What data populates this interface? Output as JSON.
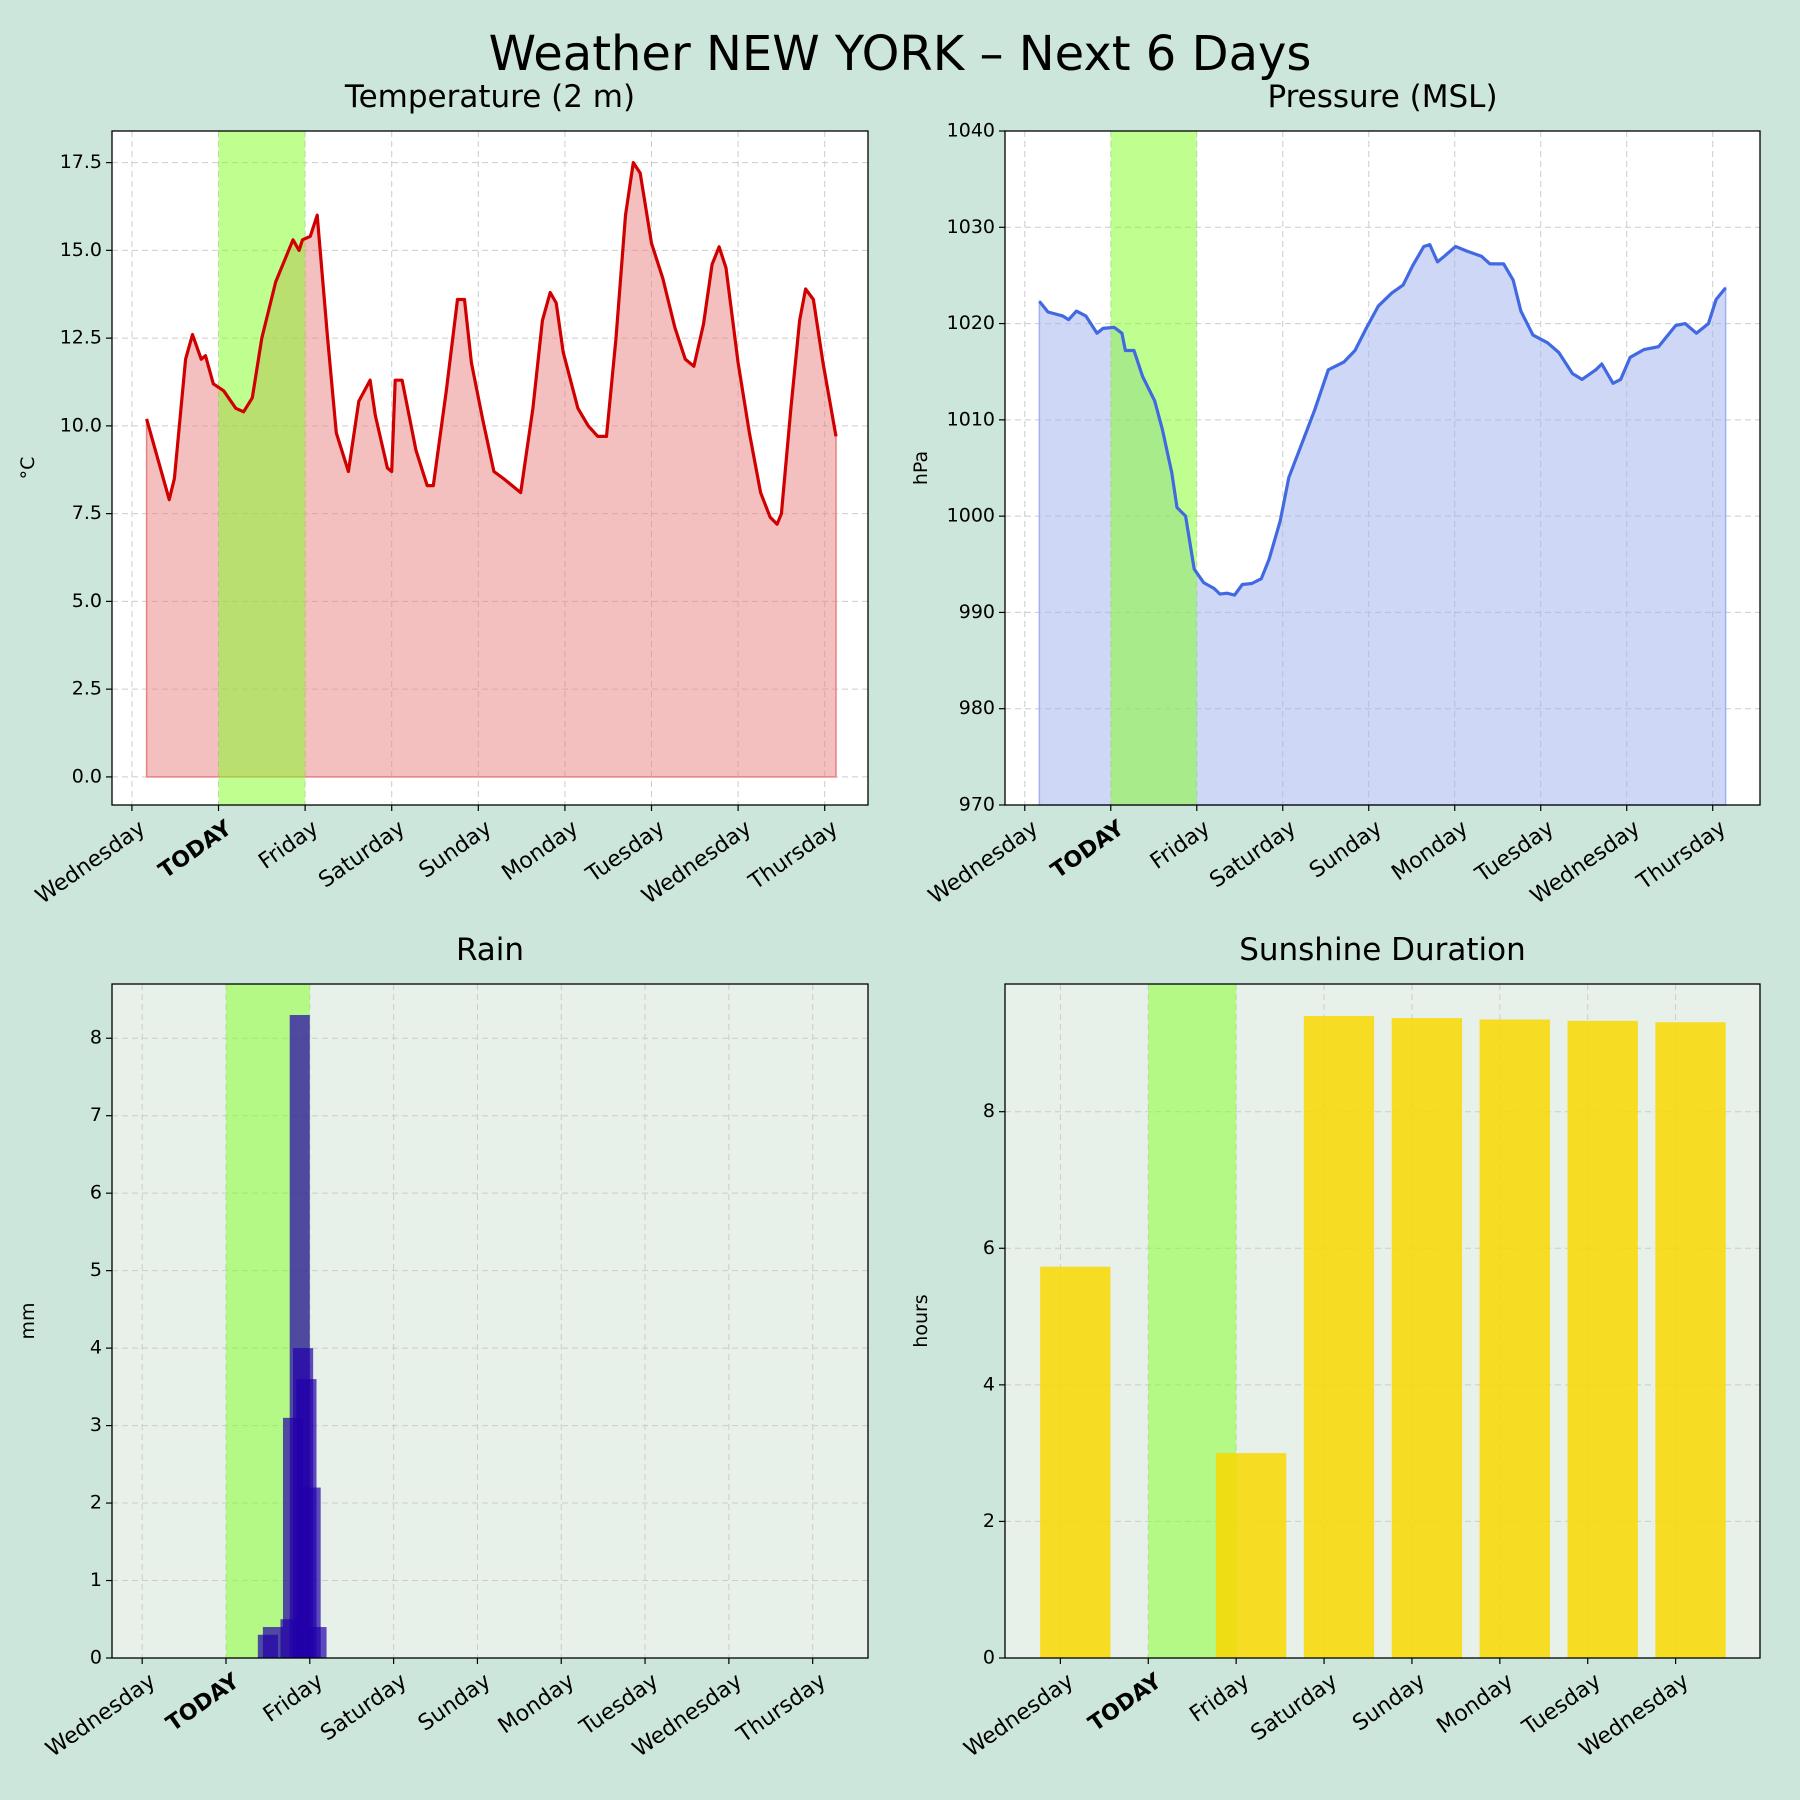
{
  "title": "Weather NEW YORK – Next 6 Days",
  "chart_data": [
    {
      "type": "line",
      "title": "Temperature (2 m)",
      "ylabel": "°C",
      "color": "#d00000",
      "fill_color": "#e88080",
      "background": "#ffffff",
      "highlight_tick": 1,
      "highlight_color": "#7fff20",
      "highlight_label_color": "#55bb00",
      "grid": true,
      "xlim": [
        -0.23,
        8.5
      ],
      "ylim": [
        -0.8,
        18.4
      ],
      "xticks": [
        {
          "value": 0,
          "label": "Wednesday"
        },
        {
          "value": 1,
          "label": "TODAY"
        },
        {
          "value": 2,
          "label": "Friday"
        },
        {
          "value": 3,
          "label": "Saturday"
        },
        {
          "value": 4,
          "label": "Sunday"
        },
        {
          "value": 5,
          "label": "Monday"
        },
        {
          "value": 6,
          "label": "Tuesday"
        },
        {
          "value": 7,
          "label": "Wednesday"
        },
        {
          "value": 8,
          "label": "Thursday"
        }
      ],
      "yticks": [
        {
          "value": 0,
          "label": "0.0"
        },
        {
          "value": 2.5,
          "label": "2.5"
        },
        {
          "value": 5,
          "label": "5.0"
        },
        {
          "value": 7.5,
          "label": "7.5"
        },
        {
          "value": 10,
          "label": "10.0"
        },
        {
          "value": 12.5,
          "label": "12.5"
        },
        {
          "value": 15,
          "label": "15.0"
        },
        {
          "value": 17.5,
          "label": "17.5"
        }
      ],
      "x": [
        0.17,
        0.43,
        0.49,
        0.62,
        0.7,
        0.8,
        0.85,
        0.94,
        1.06,
        1.2,
        1.29,
        1.39,
        1.5,
        1.66,
        1.86,
        1.93,
        1.97,
        2.06,
        2.14,
        2.26,
        2.36,
        2.5,
        2.62,
        2.75,
        2.81,
        2.95,
        3.0,
        3.04,
        3.12,
        3.28,
        3.41,
        3.48,
        3.63,
        3.76,
        3.84,
        3.92,
        4.05,
        4.18,
        4.29,
        4.49,
        4.63,
        4.74,
        4.83,
        4.9,
        4.98,
        5.15,
        5.27,
        5.38,
        5.48,
        5.59,
        5.7,
        5.79,
        5.87,
        6.0,
        6.13,
        6.27,
        6.39,
        6.49,
        6.6,
        6.7,
        6.78,
        6.86,
        7.0,
        7.13,
        7.26,
        7.37,
        7.45,
        7.5,
        7.61,
        7.71,
        7.78,
        7.87,
        7.98,
        8.13
      ],
      "values": [
        10.2,
        7.9,
        8.5,
        11.9,
        12.6,
        11.9,
        12.0,
        11.2,
        11.0,
        10.5,
        10.4,
        10.8,
        12.5,
        14.1,
        15.3,
        15.0,
        15.3,
        15.4,
        16.0,
        12.5,
        9.8,
        8.7,
        10.7,
        11.3,
        10.3,
        8.8,
        8.7,
        11.3,
        11.3,
        9.3,
        8.3,
        8.3,
        11.0,
        13.6,
        13.6,
        11.8,
        10.2,
        8.7,
        8.5,
        8.1,
        10.5,
        13.0,
        13.8,
        13.5,
        12.1,
        10.5,
        10.0,
        9.7,
        9.7,
        12.5,
        16.0,
        17.5,
        17.2,
        15.2,
        14.2,
        12.8,
        11.9,
        11.7,
        12.9,
        14.6,
        15.1,
        14.5,
        11.8,
        9.8,
        8.1,
        7.4,
        7.2,
        7.5,
        10.5,
        13.0,
        13.9,
        13.6,
        11.8,
        9.7
      ]
    },
    {
      "type": "line",
      "title": "Pressure (MSL)",
      "ylabel": "hPa",
      "color": "#4169e1",
      "fill_color": "#a0b0f0",
      "background": "#ffffff",
      "highlight_tick": 1,
      "highlight_color": "#7fff20",
      "highlight_label_color": "#55bb00",
      "grid": true,
      "xlim": [
        -0.23,
        8.55
      ],
      "ylim": [
        970,
        1040
      ],
      "xticks": [
        {
          "value": 0,
          "label": "Wednesday"
        },
        {
          "value": 1,
          "label": "TODAY"
        },
        {
          "value": 2,
          "label": "Friday"
        },
        {
          "value": 3,
          "label": "Saturday"
        },
        {
          "value": 4,
          "label": "Sunday"
        },
        {
          "value": 5,
          "label": "Monday"
        },
        {
          "value": 6,
          "label": "Tuesday"
        },
        {
          "value": 7,
          "label": "Wednesday"
        },
        {
          "value": 8,
          "label": "Thursday"
        }
      ],
      "yticks": [
        970,
        980,
        990,
        1000,
        1010,
        1020,
        1030,
        1040
      ],
      "x": [
        0.17,
        0.27,
        0.44,
        0.51,
        0.6,
        0.71,
        0.84,
        0.91,
        1.04,
        1.13,
        1.17,
        1.27,
        1.37,
        1.51,
        1.6,
        1.71,
        1.77,
        1.87,
        1.97,
        2.08,
        2.2,
        2.27,
        2.35,
        2.44,
        2.53,
        2.64,
        2.75,
        2.84,
        2.97,
        3.07,
        3.2,
        3.37,
        3.53,
        3.71,
        3.84,
        3.97,
        4.11,
        4.27,
        4.4,
        4.51,
        4.64,
        4.71,
        4.8,
        4.88,
        5.01,
        5.15,
        5.31,
        5.41,
        5.57,
        5.68,
        5.77,
        5.91,
        6.08,
        6.21,
        6.37,
        6.48,
        6.64,
        6.71,
        6.84,
        6.93,
        7.04,
        7.2,
        7.37,
        7.57,
        7.68,
        7.81,
        7.95,
        8.04,
        8.15
      ],
      "values": [
        1022.3,
        1021.2,
        1020.8,
        1020.4,
        1021.3,
        1020.8,
        1019.0,
        1019.5,
        1019.6,
        1019.0,
        1017.2,
        1017.2,
        1014.5,
        1012,
        1009,
        1004.5,
        1000.9,
        1000,
        994.5,
        993.1,
        992.5,
        991.9,
        992.0,
        991.8,
        992.9,
        993.0,
        993.5,
        995.5,
        999.5,
        1004,
        1007,
        1011,
        1015.2,
        1016.0,
        1017.2,
        1019.5,
        1021.8,
        1023.2,
        1024.0,
        1026.0,
        1028.0,
        1028.2,
        1026.4,
        1027,
        1028.0,
        1027.5,
        1027.0,
        1026.2,
        1026.2,
        1024.5,
        1021.3,
        1018.8,
        1018.0,
        1017,
        1014.8,
        1014.2,
        1015.2,
        1015.8,
        1013.8,
        1014.2,
        1016.5,
        1017.3,
        1017.6,
        1019.8,
        1020,
        1019.0,
        1020,
        1022.5,
        1023.7
      ]
    },
    {
      "type": "bar",
      "title": "Rain",
      "ylabel": "mm",
      "color": "#2200aa",
      "background": "#e8f0ea",
      "bar_width": 0.24,
      "highlight_tick": 1,
      "highlight_color": "#7fff20",
      "highlight_label_color": "#55bb00",
      "grid": true,
      "xlim": [
        -0.36,
        8.66
      ],
      "ylim": [
        0,
        8.7
      ],
      "xticks": [
        {
          "value": 0,
          "label": "Wednesday"
        },
        {
          "value": 1,
          "label": "TODAY"
        },
        {
          "value": 2,
          "label": "Friday"
        },
        {
          "value": 3,
          "label": "Saturday"
        },
        {
          "value": 4,
          "label": "Sunday"
        },
        {
          "value": 5,
          "label": "Monday"
        },
        {
          "value": 6,
          "label": "Tuesday"
        },
        {
          "value": 7,
          "label": "Wednesday"
        },
        {
          "value": 8,
          "label": "Thursday"
        }
      ],
      "yticks": [
        0,
        1,
        2,
        3,
        4,
        5,
        6,
        7,
        8
      ],
      "x": [
        1.5,
        1.56,
        1.77,
        1.8,
        1.88,
        1.92,
        1.96,
        2.01,
        2.08
      ],
      "values": [
        0.3,
        0.4,
        0.5,
        3.1,
        8.3,
        4.0,
        3.6,
        2.2,
        0.4
      ]
    },
    {
      "type": "bar",
      "title": "Sunshine Duration",
      "ylabel": "hours",
      "color": "#f8d800",
      "background": "#e8f0ea",
      "bar_width": 0.8,
      "highlight_tick": 1,
      "highlight_color": "#7fff20",
      "highlight_label_color": "#55bb00",
      "grid": true,
      "xlim": [
        -0.63,
        7.96
      ],
      "ylim": [
        0,
        9.87
      ],
      "xticks": [
        {
          "value": 0,
          "label": "Wednesday"
        },
        {
          "value": 1,
          "label": "TODAY"
        },
        {
          "value": 2,
          "label": "Friday"
        },
        {
          "value": 3,
          "label": "Saturday"
        },
        {
          "value": 4,
          "label": "Sunday"
        },
        {
          "value": 5,
          "label": "Monday"
        },
        {
          "value": 6,
          "label": "Tuesday"
        },
        {
          "value": 7,
          "label": "Wednesday"
        }
      ],
      "yticks": [
        0,
        2,
        4,
        6,
        8
      ],
      "x": [
        0.17,
        2.17,
        3.17,
        4.17,
        5.17,
        6.17,
        7.17
      ],
      "values": [
        5.73,
        3.0,
        9.4,
        9.37,
        9.35,
        9.33,
        9.31
      ]
    }
  ]
}
